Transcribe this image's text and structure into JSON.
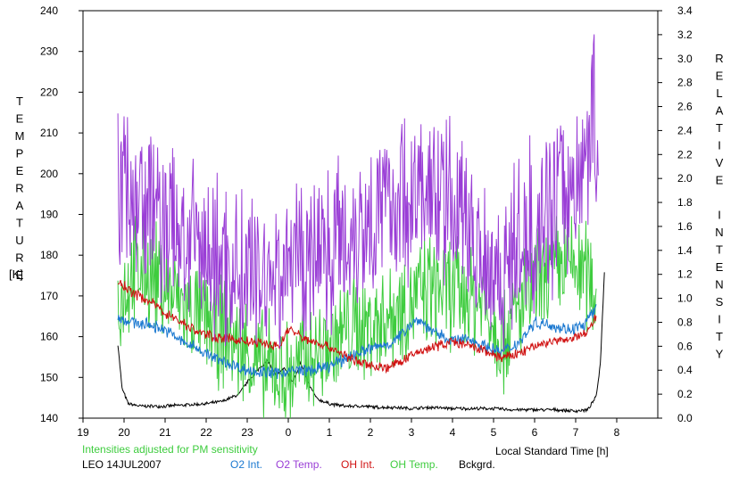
{
  "chart_data": {
    "type": "line",
    "xlabel": "Local Standard Time [h]",
    "ylabel_left": "TEMPERATURE",
    "ylabel_left_unit": "[K]",
    "ylabel_right": "RELATIVE INTENSITY",
    "ylim_left": [
      140,
      240
    ],
    "ylim_right": [
      0.0,
      3.4
    ],
    "xlim": [
      19,
      33
    ],
    "x_ticks": [
      19,
      20,
      21,
      22,
      23,
      24,
      25,
      26,
      27,
      28,
      29,
      30,
      31,
      32
    ],
    "x_tick_labels": [
      "19",
      "20",
      "21",
      "22",
      "23",
      "0",
      "1",
      "2",
      "3",
      "4",
      "5",
      "6",
      "7",
      "8"
    ],
    "y_left_ticks": [
      140,
      150,
      160,
      170,
      180,
      190,
      200,
      210,
      220,
      230,
      240
    ],
    "y_right_ticks": [
      "0.0",
      "0.2",
      "0.4",
      "0.6",
      "0.8",
      "1.0",
      "1.2",
      "1.4",
      "1.6",
      "1.8",
      "2.0",
      "2.2",
      "2.4",
      "2.6",
      "2.8",
      "3.0",
      "3.2",
      "3.4"
    ],
    "annotation": "Intensities adjusted for PM sensitivity",
    "station_label": "LEO 14JUL2007",
    "grid": false,
    "legend_position": "bottom",
    "series": [
      {
        "name": "O2 Int.",
        "axis": "right",
        "color": "#1a78d0",
        "x": [
          19.85,
          20.2,
          20.6,
          21.0,
          21.4,
          21.8,
          22.2,
          22.6,
          23.0,
          23.4,
          23.8,
          24.2,
          24.6,
          25.0,
          25.4,
          25.8,
          26.2,
          26.6,
          27.0,
          27.2,
          27.6,
          28.0,
          28.4,
          28.8,
          29.2,
          29.6,
          30.0,
          30.4,
          30.8,
          31.2,
          31.5
        ],
        "y": [
          0.84,
          0.8,
          0.78,
          0.74,
          0.64,
          0.58,
          0.5,
          0.45,
          0.4,
          0.38,
          0.38,
          0.4,
          0.4,
          0.43,
          0.5,
          0.56,
          0.6,
          0.64,
          0.8,
          0.82,
          0.7,
          0.65,
          0.66,
          0.6,
          0.55,
          0.63,
          0.8,
          0.78,
          0.74,
          0.77,
          0.92
        ],
        "noise": 0.03
      },
      {
        "name": "O2 Temp.",
        "axis": "left",
        "color": "#9a3ed6",
        "x": [
          19.85,
          20.0,
          20.4,
          20.8,
          21.2,
          21.6,
          22.0,
          22.4,
          22.8,
          23.2,
          23.6,
          24.0,
          24.4,
          24.8,
          25.2,
          25.6,
          26.0,
          26.4,
          26.8,
          27.2,
          27.6,
          28.0,
          28.4,
          28.8,
          29.2,
          29.6,
          30.0,
          30.4,
          30.8,
          31.2,
          31.4,
          31.55
        ],
        "y": [
          200,
          198,
          195,
          190,
          186,
          183,
          180,
          178,
          176,
          175,
          175,
          178,
          180,
          182,
          184,
          186,
          190,
          192,
          194,
          196,
          194,
          192,
          188,
          180,
          176,
          182,
          188,
          192,
          196,
          200,
          218,
          205
        ],
        "noise": 12
      },
      {
        "name": "OH Int.",
        "axis": "right",
        "color": "#d01010",
        "x": [
          19.85,
          20.2,
          20.6,
          21.0,
          21.4,
          21.8,
          22.2,
          22.6,
          23.0,
          23.4,
          23.8,
          24.0,
          24.4,
          24.8,
          25.2,
          25.6,
          26.0,
          26.4,
          26.8,
          27.2,
          27.6,
          28.0,
          28.4,
          28.8,
          29.2,
          29.6,
          30.0,
          30.4,
          30.8,
          31.2,
          31.5
        ],
        "y": [
          1.14,
          1.05,
          0.98,
          0.88,
          0.8,
          0.72,
          0.68,
          0.66,
          0.64,
          0.62,
          0.6,
          0.75,
          0.66,
          0.62,
          0.56,
          0.48,
          0.44,
          0.42,
          0.48,
          0.56,
          0.6,
          0.64,
          0.6,
          0.56,
          0.5,
          0.54,
          0.6,
          0.64,
          0.65,
          0.7,
          0.84
        ],
        "noise": 0.025
      },
      {
        "name": "OH Temp.",
        "axis": "left",
        "color": "#3ecc3e",
        "x": [
          19.85,
          20.2,
          20.6,
          21.0,
          21.4,
          21.8,
          22.2,
          22.6,
          23.0,
          23.4,
          23.8,
          24.0,
          24.4,
          24.8,
          25.2,
          25.6,
          26.0,
          26.4,
          26.8,
          27.2,
          27.6,
          28.0,
          28.4,
          28.8,
          29.2,
          29.6,
          30.0,
          30.4,
          30.8,
          31.2,
          31.5
        ],
        "y": [
          168,
          175,
          176,
          172,
          168,
          165,
          162,
          160,
          156,
          152,
          152,
          150,
          154,
          156,
          160,
          162,
          163,
          165,
          168,
          170,
          172,
          171,
          170,
          168,
          160,
          166,
          172,
          175,
          178,
          176,
          172
        ],
        "noise": 8
      },
      {
        "name": "Bckgrd.",
        "axis": "right",
        "color": "#000000",
        "x": [
          19.85,
          19.95,
          20.1,
          20.4,
          21.0,
          21.5,
          22.0,
          22.4,
          22.8,
          23.0,
          23.3,
          23.5,
          23.7,
          23.9,
          24.1,
          24.3,
          24.5,
          24.7,
          25.0,
          25.4,
          25.8,
          26.2,
          26.6,
          27.0,
          27.5,
          28.0,
          28.5,
          29.0,
          29.5,
          30.0,
          30.5,
          31.0,
          31.3,
          31.5,
          31.6,
          31.7
        ],
        "y": [
          0.62,
          0.25,
          0.12,
          0.1,
          0.1,
          0.11,
          0.12,
          0.14,
          0.2,
          0.3,
          0.42,
          0.48,
          0.35,
          0.42,
          0.3,
          0.46,
          0.28,
          0.16,
          0.12,
          0.1,
          0.1,
          0.09,
          0.09,
          0.08,
          0.09,
          0.08,
          0.08,
          0.08,
          0.07,
          0.07,
          0.07,
          0.06,
          0.07,
          0.18,
          0.45,
          1.22
        ],
        "noise": 0.008
      }
    ]
  }
}
